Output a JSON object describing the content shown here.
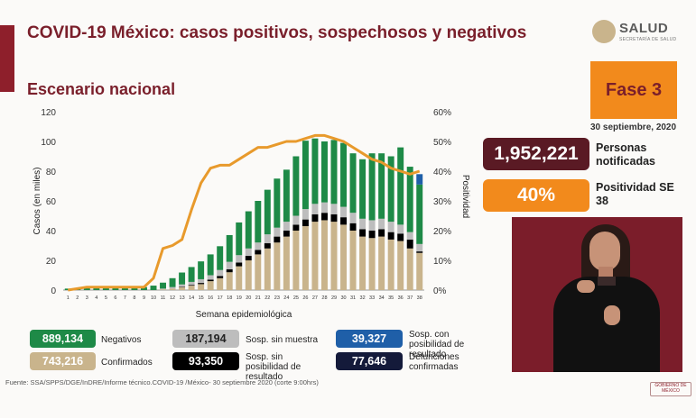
{
  "header": {
    "title": "COVID-19 México: casos positivos, sospechosos y negativos",
    "subtitle": "Escenario nacional",
    "logo_text": "SALUD",
    "logo_subtext": "SECRETARÍA DE SALUD"
  },
  "side": {
    "phase": "Fase 3",
    "date": "30 septiembre, 2020",
    "notified_value": "1,952,221",
    "notified_label": "Personas notificadas",
    "positivity_value": "40%",
    "positivity_label": "Positividad SE 38"
  },
  "legend": [
    {
      "value": "889,134",
      "label": "Negativos",
      "color": "#1e8a47"
    },
    {
      "value": "187,194",
      "label": "Sosp. sin muestra",
      "color": "#bdbdbd"
    },
    {
      "value": "39,327",
      "label": "Sosp. con posibilidad de resultado",
      "color": "#1f5fa8"
    },
    {
      "value": "743,216",
      "label": "Confirmados",
      "color": "#c9b48c"
    },
    {
      "value": "93,350",
      "label": "Sosp. sin posibilidad de resultado",
      "color": "#000000"
    },
    {
      "value": "77,646",
      "label": "Defunciones confirmadas",
      "color": "#141a3a"
    }
  ],
  "footer": {
    "source": "Fuente: SSA/SPPS/DGE/InDRE/Informe técnico.COVID-19 /México- 30 septiembre 2020 (corte 9:00hrs)",
    "footer_logo": "GOBIERNO DE MÉXICO"
  },
  "chart_data": {
    "type": "bar",
    "xlabel": "Semana epidemiológica",
    "ylabel": "Casos (en miles)",
    "y2label": "Positividad",
    "ylim": [
      0,
      120
    ],
    "y2lim": [
      0,
      60
    ],
    "yticks": [
      "0",
      "20",
      "40",
      "60",
      "80",
      "100",
      "120"
    ],
    "y2ticks": [
      "0%",
      "10%",
      "20%",
      "30%",
      "40%",
      "50%",
      "60%"
    ],
    "categories": [
      "1",
      "2",
      "3",
      "4",
      "5",
      "6",
      "7",
      "8",
      "9",
      "10",
      "11",
      "12",
      "13",
      "14",
      "15",
      "16",
      "17",
      "18",
      "19",
      "20",
      "21",
      "22",
      "23",
      "24",
      "25",
      "26",
      "27",
      "28",
      "29",
      "30",
      "31",
      "32",
      "33",
      "34",
      "35",
      "36",
      "37",
      "38"
    ],
    "series": [
      {
        "name": "Confirmados",
        "color": "#c9b48c",
        "values": [
          0,
          0,
          0,
          0,
          0,
          0,
          0,
          0,
          0,
          0,
          0.5,
          1,
          2,
          3,
          4,
          6,
          8,
          12,
          16,
          20,
          24,
          28,
          32,
          36,
          40,
          43,
          46,
          47,
          46,
          44,
          40,
          36,
          35,
          36,
          34,
          33,
          28,
          25
        ]
      },
      {
        "name": "Sosp. sin posibilidad de resultado",
        "color": "#000000",
        "values": [
          0,
          0,
          0,
          0,
          0,
          0,
          0,
          0,
          0,
          0,
          0,
          0,
          0.3,
          0.5,
          0.8,
          1,
          1.5,
          2,
          2.5,
          3,
          3,
          3.5,
          4,
          4,
          4,
          4.5,
          5,
          5,
          5,
          5,
          5,
          5,
          5,
          5,
          5,
          5,
          6,
          1
        ]
      },
      {
        "name": "Sosp. sin muestra",
        "color": "#bdbdbd",
        "values": [
          0,
          0,
          0,
          0,
          0,
          0,
          0,
          0,
          0,
          0,
          0.5,
          1,
          1.5,
          2,
          2.5,
          3,
          4,
          5,
          5,
          5,
          5,
          6,
          6,
          6,
          6,
          7,
          7,
          7,
          7,
          7,
          7,
          7,
          7,
          7,
          7,
          6,
          5,
          5
        ]
      },
      {
        "name": "Negativos",
        "color": "#1e8a47",
        "values": [
          1,
          1.5,
          1.5,
          1.5,
          1.5,
          1.5,
          1.5,
          1.5,
          2,
          3,
          4,
          6,
          8,
          10,
          12,
          14,
          16,
          18,
          22,
          25,
          28,
          30,
          33,
          35,
          40,
          46,
          44,
          41,
          43,
          43,
          40,
          40,
          45,
          44,
          44,
          52,
          44,
          40
        ]
      },
      {
        "name": "Sosp. con posibilidad de resultado",
        "color": "#1f5fa8",
        "values": [
          0,
          0,
          0,
          0,
          0,
          0,
          0,
          0,
          0,
          0,
          0,
          0,
          0,
          0,
          0,
          0,
          0,
          0,
          0,
          0,
          0,
          0,
          0,
          0,
          0,
          0,
          0,
          0,
          0,
          0,
          0,
          0,
          0,
          0,
          0,
          0,
          0,
          7
        ]
      }
    ],
    "line": {
      "name": "Positividad",
      "color": "#e89a2c",
      "values": [
        0,
        0.5,
        1,
        1,
        1,
        1,
        1,
        1,
        1,
        4,
        14,
        15,
        17,
        27,
        36,
        41,
        42,
        42,
        44,
        46,
        48,
        48,
        49,
        50,
        50,
        51,
        52,
        52,
        51,
        50,
        48,
        46,
        44,
        43,
        41,
        40,
        39,
        40
      ]
    }
  }
}
